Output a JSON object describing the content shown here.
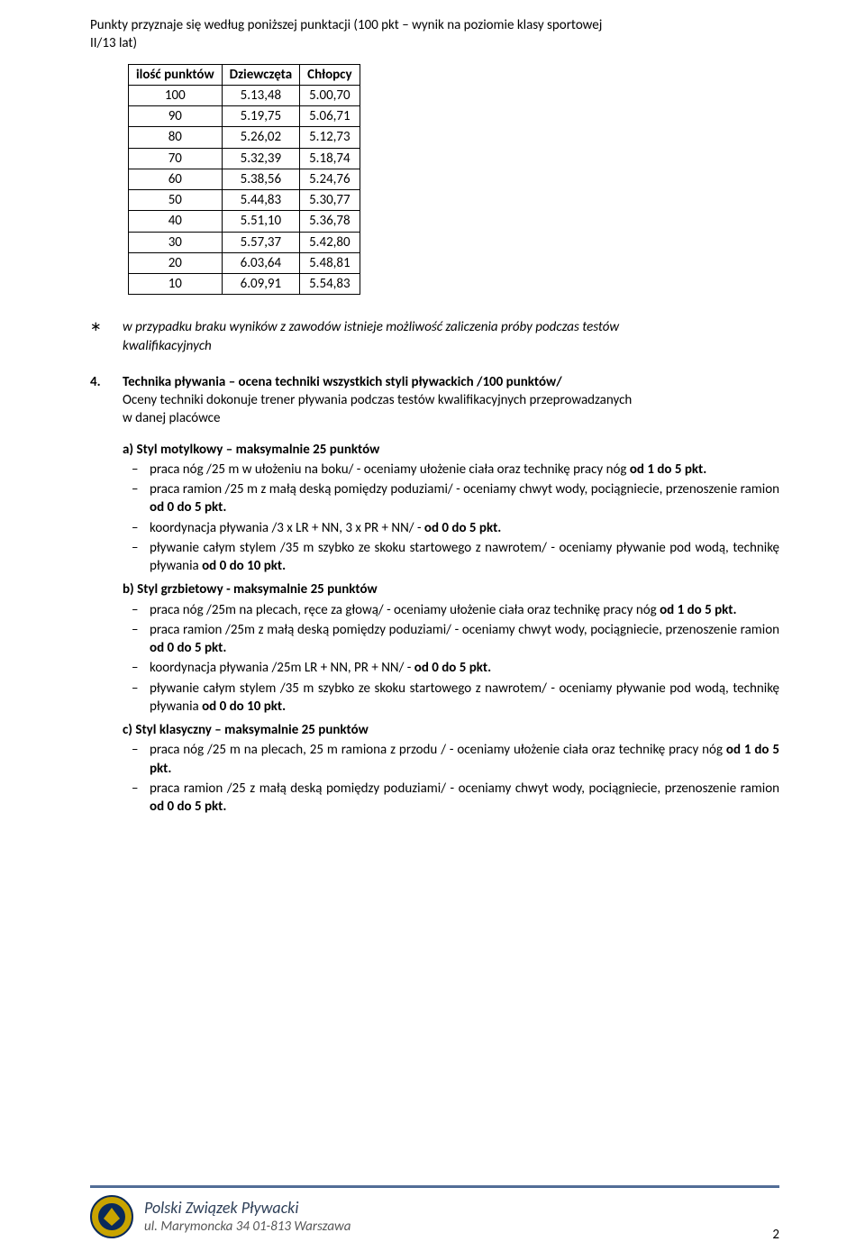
{
  "intro_line1": "Punkty przyznaje się według poniższej punktacji  (100 pkt – wynik na poziomie klasy sportowej",
  "intro_line2": "II/13 lat)",
  "table": {
    "headers": [
      "ilość punktów",
      "Dziewczęta",
      "Chłopcy"
    ],
    "rows": [
      [
        "100",
        "5.13,48",
        "5.00,70"
      ],
      [
        "90",
        "5.19,75",
        "5.06,71"
      ],
      [
        "80",
        "5.26,02",
        "5.12,73"
      ],
      [
        "70",
        "5.32,39",
        "5.18,74"
      ],
      [
        "60",
        "5.38,56",
        "5.24,76"
      ],
      [
        "50",
        "5.44,83",
        "5.30,77"
      ],
      [
        "40",
        "5.51,10",
        "5.36,78"
      ],
      [
        "30",
        "5.57,37",
        "5.42,80"
      ],
      [
        "20",
        "6.03,64",
        "5.48,81"
      ],
      [
        "10",
        "6.09,91",
        "5.54,83"
      ]
    ]
  },
  "note": {
    "marker": "∗",
    "text_l1": "w przypadku braku wyników z zawodów istnieje możliwość zaliczenia próby podczas testów",
    "text_l2": "kwalifikacyjnych"
  },
  "sec4": {
    "num": "4.",
    "title": "Technika pływania – ocena techniki wszystkich styli pływackich  /100 punktów/",
    "body_l1": "Oceny techniki dokonuje trener pływania podczas testów kwalifikacyjnych przeprowadzanych",
    "body_l2": "w danej placówce"
  },
  "styles": {
    "a": {
      "head_prefix": "a)",
      "head": "Styl motylkowy – maksymalnie 25 punktów",
      "items": [
        {
          "pre": "praca nóg /25 m w ułożeniu na boku/ -  oceniamy ułożenie ciała oraz technikę pracy nóg ",
          "bold": "od 1 do 5 pkt."
        },
        {
          "pre": "praca ramion /25 m z małą deską pomiędzy poduziami/ - oceniamy chwyt wody, pociągniecie, przenoszenie ramion ",
          "bold": "od 0 do 5 pkt."
        },
        {
          "pre": "koordynacja pływania  /3 x LR + NN, 3 x PR + NN/ - ",
          "bold": "od 0 do 5 pkt."
        },
        {
          "pre": "pływanie całym stylem  /35 m szybko ze skoku startowego z nawrotem/ - oceniamy pływanie pod wodą, technikę pływania  ",
          "bold": "od 0 do 10 pkt."
        }
      ]
    },
    "b": {
      "head_prefix": "b)",
      "head": "Styl grzbietowy  - maksymalnie 25 punktów",
      "items": [
        {
          "pre": "praca nóg /25m na plecach, ręce za głową/ - oceniamy ułożenie ciała oraz technikę pracy nóg ",
          "bold": "od 1 do 5 pkt."
        },
        {
          "pre": "praca ramion /25m z małą deską pomiędzy poduziami/ - oceniamy chwyt wody, pociągniecie, przenoszenie ramion ",
          "bold": "od 0 do 5 pkt."
        },
        {
          "pre": "koordynacja pływania  /25m LR + NN, PR + NN/ - ",
          "bold": "od 0 do 5 pkt."
        },
        {
          "pre": "pływanie całym stylem  /35 m szybko ze skoku startowego z nawrotem/ - oceniamy pływanie pod wodą, technikę pływania  ",
          "bold": "od 0 do 10 pkt."
        }
      ]
    },
    "c": {
      "head_prefix": "c)",
      "head": "Styl klasyczny – maksymalnie 25 punktów",
      "items": [
        {
          "pre": "praca nóg /25 m na plecach, 25 m ramiona z przodu / - oceniamy ułożenie ciała oraz technikę pracy nóg ",
          "bold": "od 1 do 5 pkt."
        },
        {
          "pre": "praca ramion /25 z małą deską pomiędzy poduziami/ - oceniamy chwyt wody, pociągniecie, przenoszenie ramion ",
          "bold": "od 0 do 5 pkt."
        }
      ]
    }
  },
  "footer": {
    "org": "Polski Związek Pływacki",
    "addr": "ul.  Marymoncka 34  01-813 Warszawa",
    "page": "2",
    "logo_colors": {
      "outer": "#0a2a5a",
      "inner": "#c9a400"
    }
  }
}
